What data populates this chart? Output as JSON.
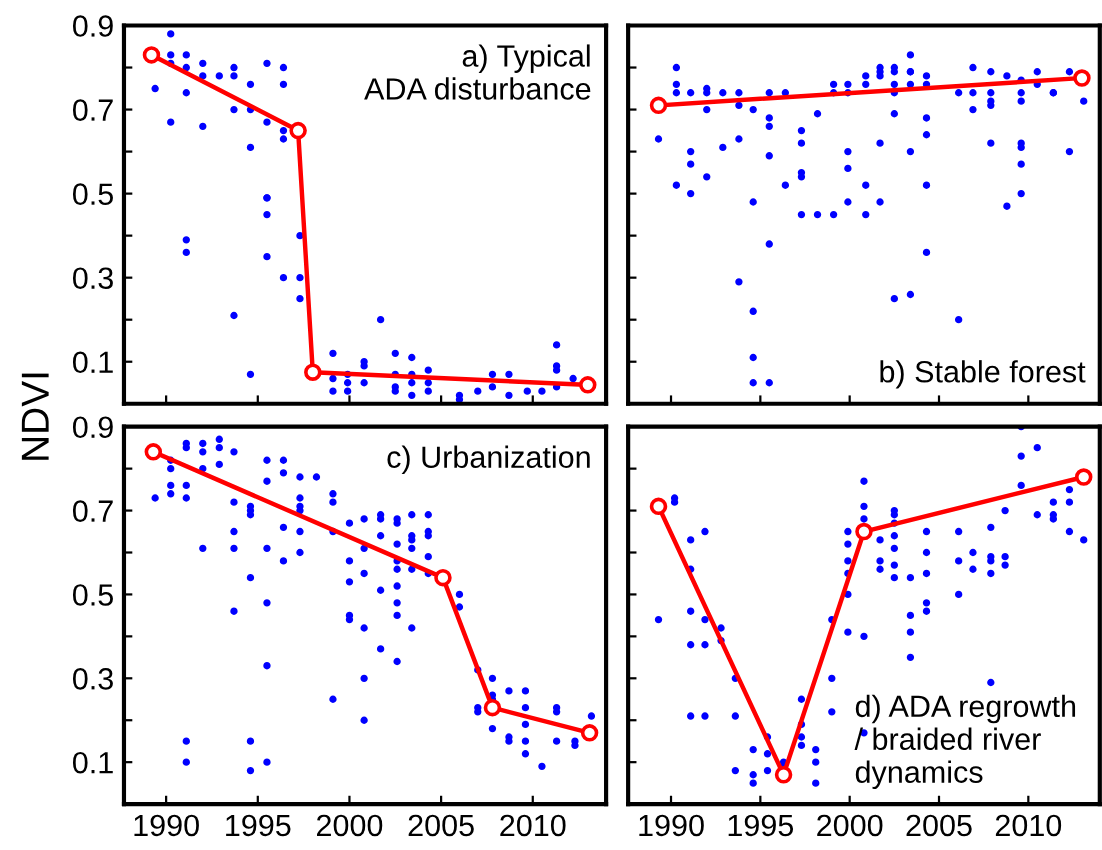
{
  "chart_data": [
    {
      "type": "scatter",
      "ylabel": "NDVI",
      "annotations": [
        "a) Typical\nADA disturbance"
      ],
      "xlim": [
        1987.7,
        2014
      ],
      "ylim": [
        0,
        0.9
      ],
      "xticks": [
        1990,
        1995,
        2000,
        2005,
        2010
      ],
      "yticks": [
        {
          "value": 0.1,
          "label": "0.1"
        },
        {
          "value": 0.2,
          "label": null
        },
        {
          "value": 0.3,
          "label": "0.3"
        },
        {
          "value": 0.4,
          "label": null
        },
        {
          "value": 0.5,
          "label": "0.5"
        },
        {
          "value": 0.6,
          "label": null
        },
        {
          "value": 0.7,
          "label": "0.7"
        },
        {
          "value": 0.8,
          "label": null
        },
        {
          "value": 0.9,
          "label": "0.9"
        }
      ],
      "tick_labels": "y",
      "grid": false,
      "series": [
        {
          "color": "#0000ff",
          "marker": "circle",
          "x": [
            1989.4,
            1990.25,
            1990.25,
            1990.25,
            1990.25,
            1991.1,
            1991.1,
            1991.1,
            1991.1,
            1991.1,
            1992,
            1992,
            1992,
            1992.9,
            1993.7,
            1993.7,
            1993.7,
            1993.7,
            1994.6,
            1994.6,
            1994.6,
            1994.6,
            1995.5,
            1995.5,
            1995.5,
            1995.5,
            1995.5,
            1995.5,
            1996.4,
            1996.4,
            1996.4,
            1996.4,
            1996.4,
            1997.3,
            1997.3,
            1997.3,
            1999.1,
            1999.1,
            1999.1,
            1999.9,
            1999.9,
            1999.9,
            2000.8,
            2000.8,
            2000.8,
            2001.7,
            2002.5,
            2002.5,
            2002.5,
            2002.5,
            2003.4,
            2003.4,
            2003.4,
            2003.4,
            2004.3,
            2004.3,
            2004.3,
            2006,
            2006,
            2007,
            2007.8,
            2007.8,
            2008.7,
            2008.7,
            2009.7,
            2010.5,
            2011.3,
            2011.3,
            2011.3,
            2011.3,
            2012.2
          ],
          "values": [
            0.75,
            0.88,
            0.83,
            0.81,
            0.67,
            0.83,
            0.8,
            0.74,
            0.39,
            0.36,
            0.81,
            0.78,
            0.66,
            0.78,
            0.8,
            0.78,
            0.7,
            0.21,
            0.76,
            0.7,
            0.61,
            0.07,
            0.81,
            0.67,
            0.49,
            0.49,
            0.45,
            0.35,
            0.8,
            0.76,
            0.65,
            0.63,
            0.3,
            0.4,
            0.3,
            0.25,
            0.12,
            0.06,
            0.03,
            0.07,
            0.05,
            0.03,
            0.1,
            0.09,
            0.05,
            0.2,
            0.12,
            0.07,
            0.04,
            0.03,
            0.11,
            0.07,
            0.05,
            0.02,
            0.08,
            0.05,
            0.03,
            0.02,
            0.01,
            0.03,
            0.07,
            0.04,
            0.07,
            0.02,
            0.03,
            0.03,
            0.14,
            0.09,
            0.08,
            0.04,
            0.06
          ]
        },
        {
          "type": "line",
          "color": "#ff0000",
          "marker": "circle",
          "line_style": "solid",
          "x": [
            1989.2,
            1997.2,
            1998.0,
            2013.0
          ],
          "values": [
            0.83,
            0.65,
            0.075,
            0.045
          ]
        }
      ]
    },
    {
      "type": "scatter",
      "annotations": [
        "b) Stable forest"
      ],
      "xlim": [
        1987.6,
        2014
      ],
      "ylim": [
        0,
        0.9
      ],
      "xticks": [
        1990,
        1995,
        2000,
        2005,
        2010
      ],
      "yticks": [
        0.1,
        0.2,
        0.3,
        0.4,
        0.5,
        0.6,
        0.7,
        0.8,
        0.9
      ],
      "tick_labels": false,
      "grid": false,
      "series": [
        {
          "color": "#0000ff",
          "marker": "circle",
          "x": [
            1989.3,
            1990.3,
            1990.3,
            1990.3,
            1990.3,
            1991.1,
            1991.1,
            1991.1,
            1991.1,
            1992,
            1992,
            1992,
            1992,
            1992.9,
            1992.9,
            1993.8,
            1993.8,
            1993.8,
            1993.8,
            1994.6,
            1994.6,
            1994.6,
            1994.6,
            1994.6,
            1995.5,
            1995.5,
            1995.5,
            1995.5,
            1995.5,
            1995.5,
            1996.4,
            1996.4,
            1997.3,
            1997.3,
            1997.3,
            1997.3,
            1997.3,
            1998.2,
            1998.2,
            1999.1,
            1999.1,
            1999.1,
            1999.9,
            1999.9,
            1999.9,
            1999.9,
            1999.9,
            2000.9,
            2000.9,
            2000.9,
            2000.9,
            2001.7,
            2001.7,
            2001.7,
            2001.7,
            2001.7,
            2002.5,
            2002.5,
            2002.5,
            2002.5,
            2002.5,
            2002.5,
            2003.4,
            2003.4,
            2003.4,
            2003.4,
            2003.4,
            2003.4,
            2004.3,
            2004.3,
            2004.3,
            2004.3,
            2004.3,
            2004.3,
            2006.1,
            2006.1,
            2006.9,
            2006.9,
            2006.9,
            2007.9,
            2007.9,
            2007.9,
            2007.9,
            2007.9,
            2008.8,
            2008.8,
            2009.6,
            2009.6,
            2009.6,
            2009.6,
            2009.6,
            2009.6,
            2009.6,
            2010.5,
            2010.5,
            2011.4,
            2011.4,
            2012.3,
            2012.3,
            2013.1
          ],
          "values": [
            0.63,
            0.8,
            0.76,
            0.74,
            0.52,
            0.74,
            0.6,
            0.57,
            0.5,
            0.75,
            0.74,
            0.7,
            0.54,
            0.74,
            0.61,
            0.74,
            0.71,
            0.63,
            0.29,
            0.7,
            0.48,
            0.22,
            0.11,
            0.05,
            0.74,
            0.68,
            0.66,
            0.59,
            0.38,
            0.05,
            0.74,
            0.52,
            0.65,
            0.62,
            0.55,
            0.54,
            0.45,
            0.69,
            0.45,
            0.76,
            0.74,
            0.45,
            0.76,
            0.74,
            0.6,
            0.56,
            0.48,
            0.78,
            0.76,
            0.52,
            0.45,
            0.8,
            0.79,
            0.78,
            0.62,
            0.48,
            0.8,
            0.79,
            0.76,
            0.74,
            0.69,
            0.25,
            0.83,
            0.79,
            0.79,
            0.76,
            0.6,
            0.26,
            0.78,
            0.76,
            0.68,
            0.64,
            0.52,
            0.36,
            0.74,
            0.2,
            0.8,
            0.74,
            0.7,
            0.79,
            0.74,
            0.72,
            0.71,
            0.62,
            0.78,
            0.47,
            0.77,
            0.74,
            0.72,
            0.62,
            0.61,
            0.57,
            0.5,
            0.79,
            0.76,
            0.74,
            0.74,
            0.79,
            0.6,
            0.72
          ]
        },
        {
          "type": "line",
          "color": "#ff0000",
          "marker": "circle",
          "line_style": "solid",
          "x": [
            1989.3,
            2013.0
          ],
          "values": [
            0.71,
            0.775
          ]
        }
      ]
    },
    {
      "type": "scatter",
      "annotations": [
        "c) Urbanization"
      ],
      "xlim": [
        1987.7,
        2014
      ],
      "ylim": [
        0,
        0.9
      ],
      "xticks": [
        1990,
        1995,
        2000,
        2005,
        2010
      ],
      "yticks": [
        {
          "value": 0.1,
          "label": "0.1"
        },
        {
          "value": 0.2,
          "label": null
        },
        {
          "value": 0.3,
          "label": "0.3"
        },
        {
          "value": 0.4,
          "label": null
        },
        {
          "value": 0.5,
          "label": "0.5"
        },
        {
          "value": 0.6,
          "label": null
        },
        {
          "value": 0.7,
          "label": "0.7"
        },
        {
          "value": 0.8,
          "label": null
        },
        {
          "value": 0.9,
          "label": "0.9"
        }
      ],
      "grid": false,
      "series": [
        {
          "color": "#0000ff",
          "marker": "circle",
          "x": [
            1989.4,
            1990.25,
            1990.25,
            1990.25,
            1990.25,
            1991.1,
            1991.1,
            1991.1,
            1991.1,
            1991.1,
            1991.1,
            1992,
            1992,
            1992,
            1992,
            1992.9,
            1992.9,
            1992.9,
            1993.7,
            1993.7,
            1993.7,
            1993.7,
            1993.7,
            1994.6,
            1994.6,
            1994.6,
            1994.6,
            1994.6,
            1994.6,
            1995.5,
            1995.5,
            1995.5,
            1995.5,
            1995.5,
            1995.5,
            1996.4,
            1996.4,
            1996.4,
            1996.4,
            1997.3,
            1997.3,
            1997.3,
            1997.3,
            1997.3,
            1997.3,
            1998.2,
            1999.1,
            1999.1,
            1999.1,
            1999.1,
            2000,
            2000,
            2000,
            2000,
            2000,
            2000.8,
            2000.8,
            2000.8,
            2000.8,
            2000.8,
            2000.8,
            2001.7,
            2001.7,
            2001.7,
            2001.7,
            2001.7,
            2002.6,
            2002.6,
            2002.6,
            2002.6,
            2002.6,
            2002.6,
            2002.6,
            2002.6,
            2002.6,
            2003.4,
            2003.4,
            2003.4,
            2003.4,
            2003.4,
            2003.4,
            2004.3,
            2004.3,
            2004.3,
            2004.3,
            2004.3,
            2006,
            2006,
            2007,
            2007,
            2007,
            2007.8,
            2007.8,
            2007.8,
            2007.8,
            2008.7,
            2008.7,
            2008.7,
            2009.6,
            2009.6,
            2009.6,
            2009.6,
            2009.6,
            2010.5,
            2011.3,
            2011.3,
            2011.3,
            2012.3,
            2012.3,
            2013.2
          ],
          "values": [
            0.73,
            0.82,
            0.8,
            0.76,
            0.74,
            0.86,
            0.85,
            0.76,
            0.73,
            0.15,
            0.1,
            0.86,
            0.84,
            0.8,
            0.61,
            0.87,
            0.85,
            0.81,
            0.84,
            0.72,
            0.65,
            0.61,
            0.46,
            0.71,
            0.7,
            0.69,
            0.54,
            0.15,
            0.08,
            0.82,
            0.77,
            0.61,
            0.48,
            0.33,
            0.1,
            0.82,
            0.79,
            0.66,
            0.58,
            0.78,
            0.73,
            0.71,
            0.7,
            0.65,
            0.6,
            0.78,
            0.74,
            0.72,
            0.65,
            0.25,
            0.67,
            0.58,
            0.53,
            0.45,
            0.44,
            0.68,
            0.61,
            0.55,
            0.42,
            0.3,
            0.2,
            0.69,
            0.68,
            0.64,
            0.51,
            0.37,
            0.68,
            0.67,
            0.62,
            0.58,
            0.56,
            0.52,
            0.48,
            0.45,
            0.34,
            0.69,
            0.64,
            0.63,
            0.61,
            0.56,
            0.42,
            0.69,
            0.65,
            0.64,
            0.59,
            0.55,
            0.5,
            0.47,
            0.32,
            0.23,
            0.22,
            0.3,
            0.26,
            0.25,
            0.18,
            0.27,
            0.16,
            0.15,
            0.27,
            0.23,
            0.19,
            0.15,
            0.12,
            0.09,
            0.23,
            0.22,
            0.15,
            0.15,
            0.14,
            0.21
          ]
        },
        {
          "type": "line",
          "color": "#ff0000",
          "marker": "circle",
          "line_style": "solid",
          "x": [
            1989.3,
            2005.1,
            2007.8,
            2013.1
          ],
          "values": [
            0.84,
            0.54,
            0.23,
            0.17
          ]
        }
      ]
    },
    {
      "type": "scatter",
      "annotations": [
        "d) ADA regrowth\n/ braided river\ndynamics"
      ],
      "xlim": [
        1987.6,
        2014
      ],
      "ylim": [
        0,
        0.9
      ],
      "xticks": [
        1990,
        1995,
        2000,
        2005,
        2010
      ],
      "yticks": [
        0.1,
        0.2,
        0.3,
        0.4,
        0.5,
        0.6,
        0.7,
        0.8,
        0.9
      ],
      "tick_labels": "x",
      "grid": false,
      "series": [
        {
          "color": "#0000ff",
          "marker": "circle",
          "x": [
            1989.3,
            1990.2,
            1990.2,
            1991.1,
            1991.1,
            1991.1,
            1991.1,
            1991.1,
            1991.9,
            1991.9,
            1991.9,
            1991.9,
            1992.8,
            1992.8,
            1993.6,
            1993.6,
            1993.6,
            1994.6,
            1994.6,
            1994.6,
            1995.4,
            1995.4,
            1995.4,
            1996.3,
            1996.3,
            1997.3,
            1997.3,
            1997.3,
            1997.3,
            1998.1,
            1998.1,
            1998.1,
            1999,
            1999,
            1999,
            1999.9,
            1999.9,
            1999.9,
            1999.9,
            1999.9,
            1999.9,
            2000.8,
            2000.8,
            2000.8,
            2000.8,
            2000.8,
            2001.7,
            2001.7,
            2001.7,
            2002.5,
            2002.5,
            2002.5,
            2002.5,
            2002.5,
            2002.5,
            2002.5,
            2003.4,
            2003.4,
            2003.4,
            2003.4,
            2004.3,
            2004.3,
            2004.3,
            2004.3,
            2004.3,
            2006.1,
            2006.1,
            2006.1,
            2006.9,
            2006.9,
            2007.9,
            2007.9,
            2007.9,
            2007.9,
            2007.9,
            2008.7,
            2008.7,
            2008.7,
            2009.6,
            2009.6,
            2009.6,
            2010.5,
            2010.5,
            2011.4,
            2011.4,
            2011.4,
            2012.3,
            2012.3,
            2012.3,
            2013.1
          ],
          "values": [
            0.44,
            0.73,
            0.72,
            0.63,
            0.56,
            0.46,
            0.38,
            0.21,
            0.65,
            0.44,
            0.38,
            0.21,
            0.42,
            0.39,
            0.3,
            0.21,
            0.08,
            0.13,
            0.07,
            0.05,
            0.16,
            0.12,
            0.08,
            0.1,
            0.09,
            0.25,
            0.19,
            0.16,
            0.14,
            0.13,
            0.1,
            0.05,
            0.44,
            0.3,
            0.22,
            0.65,
            0.62,
            0.58,
            0.55,
            0.5,
            0.41,
            0.77,
            0.71,
            0.68,
            0.4,
            0.17,
            0.63,
            0.58,
            0.56,
            0.7,
            0.69,
            0.67,
            0.64,
            0.61,
            0.57,
            0.54,
            0.54,
            0.45,
            0.41,
            0.35,
            0.65,
            0.6,
            0.55,
            0.48,
            0.46,
            0.65,
            0.58,
            0.5,
            0.6,
            0.56,
            0.66,
            0.59,
            0.58,
            0.55,
            0.29,
            0.7,
            0.59,
            0.57,
            0.9,
            0.83,
            0.76,
            0.85,
            0.69,
            0.72,
            0.69,
            0.68,
            0.75,
            0.72,
            0.65,
            0.63
          ]
        },
        {
          "type": "line",
          "color": "#ff0000",
          "marker": "circle",
          "line_style": "solid",
          "x": [
            1989.3,
            1996.3,
            2000.8,
            2013.1
          ],
          "values": [
            0.71,
            0.07,
            0.65,
            0.78
          ]
        }
      ]
    }
  ]
}
